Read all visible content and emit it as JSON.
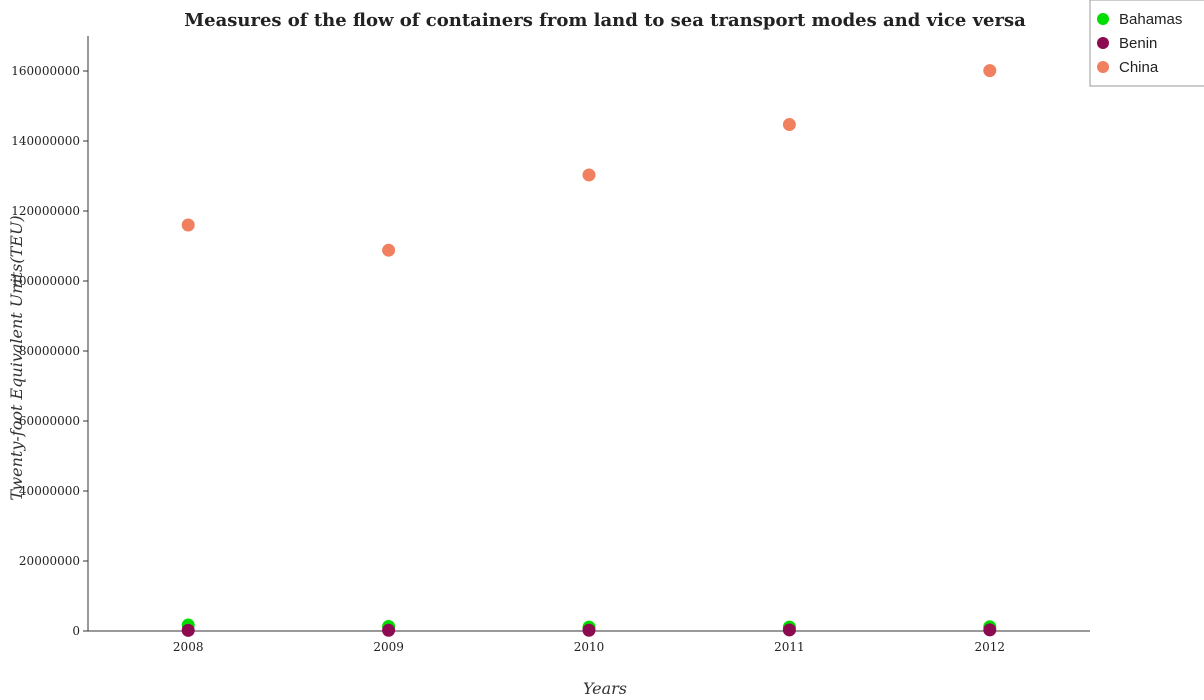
{
  "chart_data": {
    "type": "scatter",
    "title": "Measures of the flow of containers from land to sea transport modes and vice versa",
    "xlabel": "Years",
    "ylabel": "Twenty-foot Equivalent Units(TEU)",
    "categories": [
      "2008",
      "2009",
      "2010",
      "2011",
      "2012"
    ],
    "ylim": [
      0,
      170000000
    ],
    "yticks": [
      0,
      20000000,
      40000000,
      60000000,
      80000000,
      100000000,
      120000000,
      140000000,
      160000000
    ],
    "ytick_labels": [
      "0",
      "20000000",
      "40000000",
      "60000000",
      "80000000",
      "100000000",
      "120000000",
      "140000000",
      "160000000"
    ],
    "grid": false,
    "legend_position": "top-right",
    "series": [
      {
        "name": "Bahamas",
        "color": "#00dd00",
        "values": [
          1702000,
          1297000,
          1125000,
          1116000,
          1202000
        ]
      },
      {
        "name": "Benin",
        "color": "#8b0a50",
        "values": [
          185000,
          200000,
          210000,
          300000,
          310000
        ]
      },
      {
        "name": "China",
        "color": "#f08060",
        "values": [
          116000000,
          108800000,
          130300000,
          144700000,
          160100000
        ]
      }
    ]
  }
}
